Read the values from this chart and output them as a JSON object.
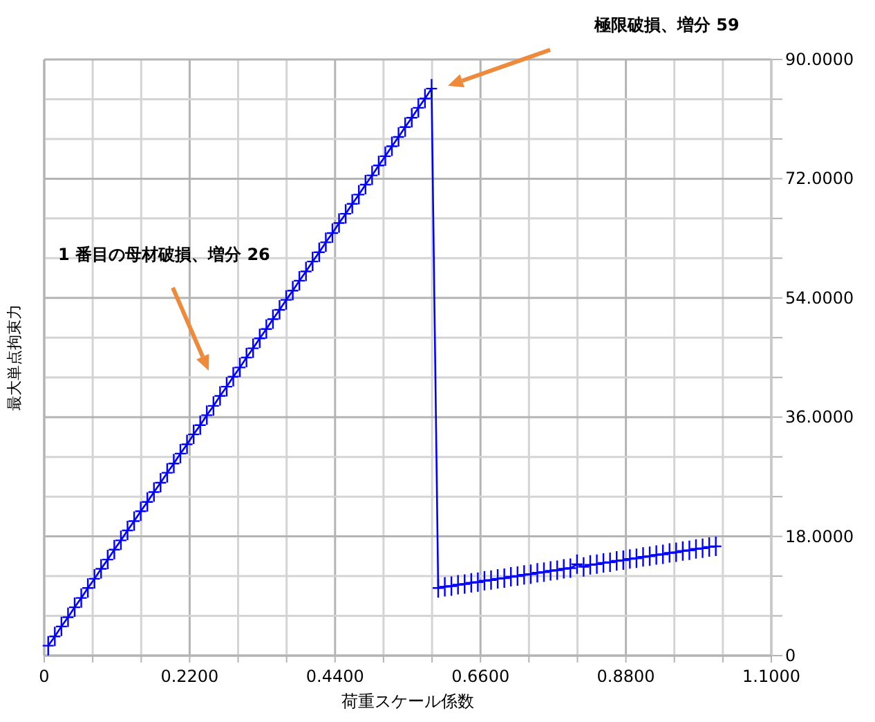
{
  "chart_data": {
    "type": "line",
    "xlabel": "荷重スケール係数",
    "ylabel": "最大単点拘束力",
    "xlim": [
      0,
      1.1
    ],
    "ylim": [
      0,
      90
    ],
    "xticks": [
      0,
      {
        "value": 0.0733,
        "label": null
      },
      {
        "value": 0.1467,
        "label": null
      },
      {
        "value": 0.22,
        "label": "0.2200"
      },
      {
        "value": 0.2933,
        "label": null
      },
      {
        "value": 0.3667,
        "label": null
      },
      {
        "value": 0.44,
        "label": "0.4400"
      },
      {
        "value": 0.5133,
        "label": null
      },
      {
        "value": 0.5867,
        "label": null
      },
      {
        "value": 0.66,
        "label": "0.6600"
      },
      {
        "value": 0.7333,
        "label": null
      },
      {
        "value": 0.8067,
        "label": null
      },
      {
        "value": 0.88,
        "label": "0.8800"
      },
      {
        "value": 0.9533,
        "label": null
      },
      {
        "value": 1.0267,
        "label": null
      },
      {
        "value": 1.1,
        "label": "1.1000"
      }
    ],
    "yticks": [
      0,
      {
        "value": 6,
        "label": null
      },
      {
        "value": 12,
        "label": null
      },
      {
        "value": 18,
        "label": "18.0000"
      },
      {
        "value": 24,
        "label": null
      },
      {
        "value": 30,
        "label": null
      },
      {
        "value": 36,
        "label": "36.0000"
      },
      {
        "value": 42,
        "label": null
      },
      {
        "value": 48,
        "label": null
      },
      {
        "value": 54,
        "label": "54.0000"
      },
      {
        "value": 60,
        "label": null
      },
      {
        "value": 66,
        "label": null
      },
      {
        "value": 72,
        "label": "72.0000"
      },
      {
        "value": 78,
        "label": null
      },
      {
        "value": 84,
        "label": null
      },
      {
        "value": 90,
        "label": "90.0000"
      }
    ],
    "grid": true,
    "marker": "cross",
    "series": [
      {
        "color": "#0000ff",
        "x": [
          0.006,
          0.016,
          0.026,
          0.036,
          0.046,
          0.056,
          0.066,
          0.076,
          0.086,
          0.096,
          0.106,
          0.116,
          0.126,
          0.136,
          0.146,
          0.156,
          0.166,
          0.176,
          0.186,
          0.196,
          0.206,
          0.216,
          0.226,
          0.236,
          0.246,
          0.256,
          0.266,
          0.276,
          0.286,
          0.296,
          0.306,
          0.316,
          0.326,
          0.336,
          0.346,
          0.356,
          0.366,
          0.376,
          0.386,
          0.396,
          0.406,
          0.416,
          0.426,
          0.436,
          0.446,
          0.456,
          0.466,
          0.476,
          0.486,
          0.496,
          0.506,
          0.516,
          0.526,
          0.536,
          0.546,
          0.556,
          0.566,
          0.576,
          0.586,
          0.596,
          0.606,
          0.616,
          0.626,
          0.636,
          0.646,
          0.656,
          0.666,
          0.676,
          0.686,
          0.696,
          0.706,
          0.716,
          0.726,
          0.736,
          0.746,
          0.756,
          0.766,
          0.776,
          0.786,
          0.796,
          0.806,
          0.816,
          0.826,
          0.836,
          0.846,
          0.856,
          0.866,
          0.876,
          0.886,
          0.896,
          0.906,
          0.916,
          0.926,
          0.936,
          0.946,
          0.956,
          0.966,
          0.976,
          0.986,
          0.996,
          1.006,
          1.016
        ],
        "values": [
          1.5,
          2.9,
          4.4,
          5.8,
          7.3,
          8.7,
          10.2,
          11.6,
          13.1,
          14.5,
          16.0,
          17.4,
          18.9,
          20.3,
          21.8,
          23.2,
          24.7,
          26.1,
          27.6,
          29.0,
          30.5,
          31.9,
          33.4,
          34.8,
          36.3,
          37.7,
          39.2,
          40.6,
          42.1,
          43.5,
          45.0,
          46.4,
          47.9,
          49.3,
          50.8,
          52.2,
          53.7,
          55.1,
          56.6,
          58.0,
          59.5,
          60.9,
          62.4,
          63.8,
          65.3,
          66.7,
          68.2,
          69.6,
          71.1,
          72.5,
          74.0,
          75.4,
          76.9,
          78.3,
          79.8,
          81.2,
          82.7,
          84.1,
          85.6,
          10.2,
          10.4,
          10.5,
          10.7,
          10.8,
          11.0,
          11.1,
          11.3,
          11.4,
          11.6,
          11.7,
          11.9,
          12.0,
          12.2,
          12.3,
          12.5,
          12.6,
          12.8,
          12.9,
          13.1,
          13.2,
          13.8,
          13.4,
          13.7,
          13.8,
          14.0,
          14.1,
          14.3,
          14.4,
          14.6,
          14.7,
          14.9,
          15.0,
          15.2,
          15.3,
          15.5,
          15.6,
          15.8,
          15.9,
          16.1,
          16.2,
          16.4,
          16.5
        ]
      }
    ],
    "annotations": [
      "1 番目の母材破損、増分 26",
      "極限破損、増分 59"
    ]
  }
}
